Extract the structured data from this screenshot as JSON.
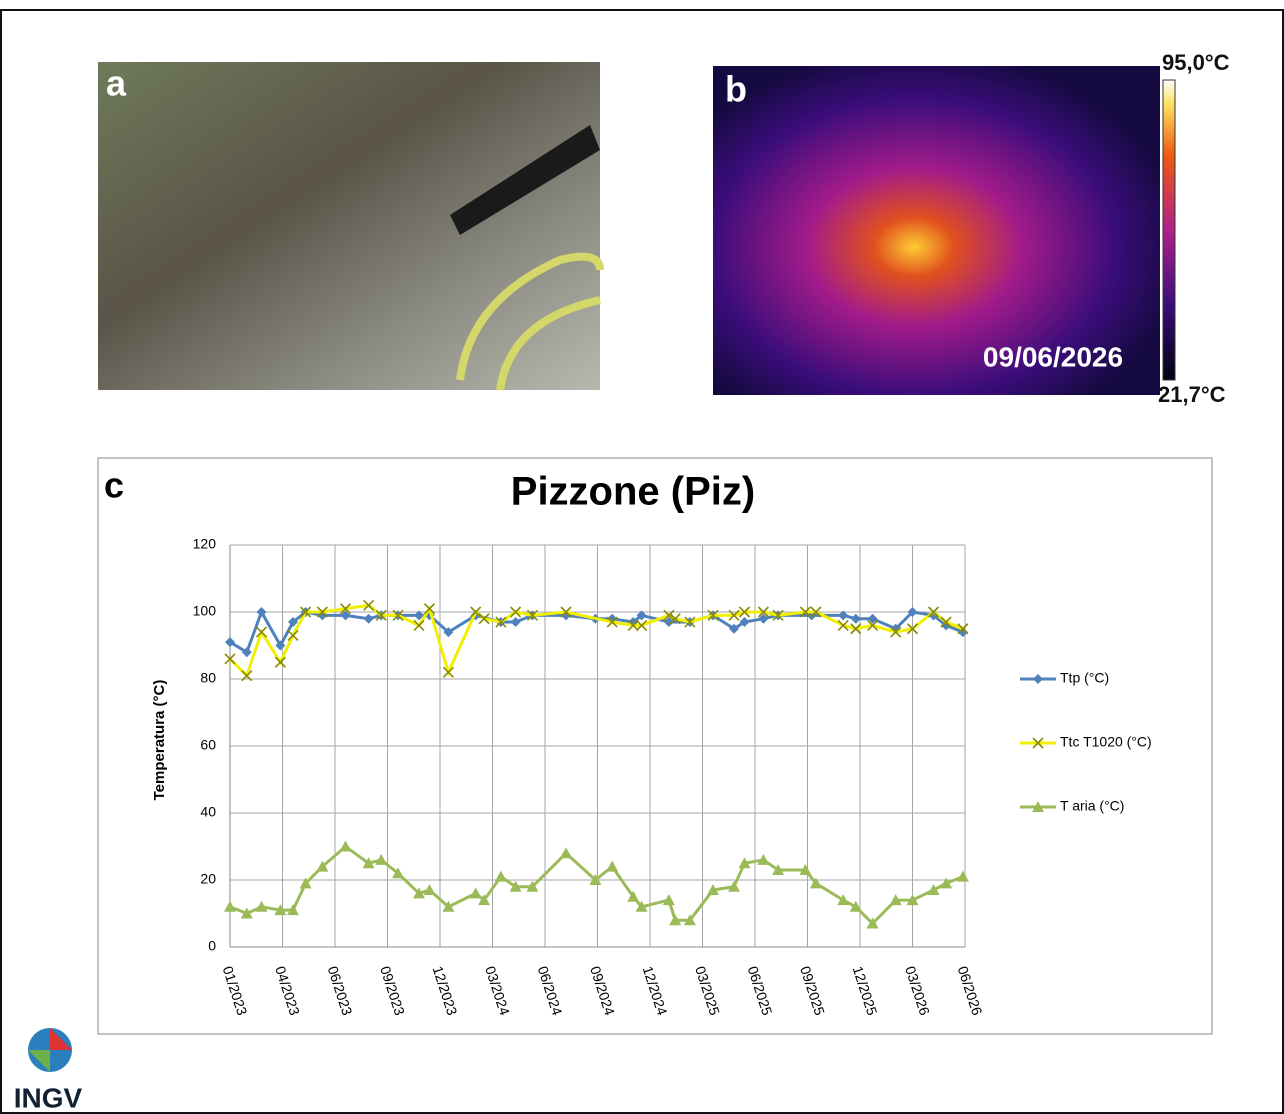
{
  "panels": {
    "a": {
      "label": "a"
    },
    "b": {
      "label": "b",
      "date": "09/06/2026",
      "scale_max": "95,0°C",
      "scale_min": "21,7°C"
    },
    "c": {
      "label": "c"
    }
  },
  "logo": {
    "text": "INGV"
  },
  "chart_data": {
    "type": "line",
    "title": "Pizzone (Piz)",
    "y_label": "Temperatura (°C)",
    "xlim": [
      2023,
      2026.5
    ],
    "ylim": [
      0,
      120
    ],
    "xticks": [
      {
        "value": 2023,
        "label": "01/2023"
      },
      {
        "value": 2023.25,
        "label": "04/2023"
      },
      {
        "value": 2023.5,
        "label": "06/2023"
      },
      {
        "value": 2023.75,
        "label": "09/2023"
      },
      {
        "value": 2024,
        "label": "12/2023"
      },
      {
        "value": 2024.25,
        "label": "03/2024"
      },
      {
        "value": 2024.5,
        "label": "06/2024"
      },
      {
        "value": 2024.75,
        "label": "09/2024"
      },
      {
        "value": 2025,
        "label": "12/2024"
      },
      {
        "value": 2025.25,
        "label": "03/2025"
      },
      {
        "value": 2025.5,
        "label": "06/2025"
      },
      {
        "value": 2025.75,
        "label": "09/2025"
      },
      {
        "value": 2026,
        "label": "12/2025"
      },
      {
        "value": 2026.25,
        "label": "03/2026"
      },
      {
        "value": 2026.5,
        "label": "06/2026"
      }
    ],
    "yticks": [
      0,
      20,
      40,
      60,
      80,
      100,
      120
    ],
    "grid": true,
    "legend": "right",
    "series": [
      {
        "name": "Ttp (°C)",
        "color": "#4f81bd",
        "marker": "diamond",
        "x": [
          2023,
          2023.08,
          2023.15,
          2023.24,
          2023.3,
          2023.36,
          2023.44,
          2023.55,
          2023.66,
          2023.72,
          2023.8,
          2023.9,
          2023.95,
          2024.04,
          2024.17,
          2024.29,
          2024.36,
          2024.44,
          2024.6,
          2024.74,
          2024.82,
          2024.92,
          2024.96,
          2025.09,
          2025.19,
          2025.3,
          2025.4,
          2025.45,
          2025.54,
          2025.61,
          2025.77,
          2025.92,
          2025.98,
          2026.06,
          2026.17,
          2026.25,
          2026.35,
          2026.41,
          2026.49
        ],
        "values": [
          91,
          88,
          100,
          90,
          97,
          100,
          99,
          99,
          98,
          99,
          99,
          99,
          99,
          94,
          99,
          97,
          97,
          99,
          99,
          98,
          98,
          97,
          99,
          97,
          97,
          99,
          95,
          97,
          98,
          99,
          99,
          99,
          98,
          98,
          95,
          100,
          99,
          96,
          94
        ]
      },
      {
        "name": "Ttc T1020 (°C)",
        "color": "#f0f000",
        "marker": "x",
        "x": [
          2023,
          2023.08,
          2023.15,
          2023.24,
          2023.3,
          2023.36,
          2023.44,
          2023.55,
          2023.66,
          2023.72,
          2023.8,
          2023.9,
          2023.95,
          2024.04,
          2024.17,
          2024.21,
          2024.29,
          2024.36,
          2024.44,
          2024.6,
          2024.82,
          2024.92,
          2024.96,
          2025.09,
          2025.12,
          2025.19,
          2025.3,
          2025.4,
          2025.45,
          2025.54,
          2025.61,
          2025.74,
          2025.79,
          2025.92,
          2025.98,
          2026.06,
          2026.17,
          2026.25,
          2026.35,
          2026.41,
          2026.49
        ],
        "values": [
          86,
          81,
          94,
          85,
          93,
          100,
          100,
          101,
          102,
          99,
          99,
          96,
          101,
          82,
          100,
          98,
          97,
          100,
          99,
          100,
          97,
          96,
          96,
          99,
          98,
          97,
          99,
          99,
          100,
          100,
          99,
          100,
          100,
          96,
          95,
          96,
          94,
          95,
          100,
          97,
          95
        ]
      },
      {
        "name": "T aria (°C)",
        "color": "#9bbb59",
        "marker": "triangle",
        "x": [
          2023,
          2023.08,
          2023.15,
          2023.24,
          2023.3,
          2023.36,
          2023.44,
          2023.55,
          2023.66,
          2023.72,
          2023.8,
          2023.9,
          2023.95,
          2024.04,
          2024.17,
          2024.21,
          2024.29,
          2024.36,
          2024.44,
          2024.6,
          2024.74,
          2024.82,
          2024.92,
          2024.96,
          2025.09,
          2025.12,
          2025.19,
          2025.3,
          2025.4,
          2025.45,
          2025.54,
          2025.61,
          2025.74,
          2025.79,
          2025.92,
          2025.98,
          2026.06,
          2026.17,
          2026.25,
          2026.35,
          2026.41,
          2026.49
        ],
        "values": [
          12,
          10,
          12,
          11,
          11,
          19,
          24,
          30,
          25,
          26,
          22,
          16,
          17,
          12,
          16,
          14,
          21,
          18,
          18,
          28,
          20,
          24,
          15,
          12,
          14,
          8,
          8,
          17,
          18,
          25,
          26,
          23,
          23,
          19,
          14,
          12,
          7,
          14,
          14,
          17,
          19,
          21
        ]
      }
    ]
  }
}
